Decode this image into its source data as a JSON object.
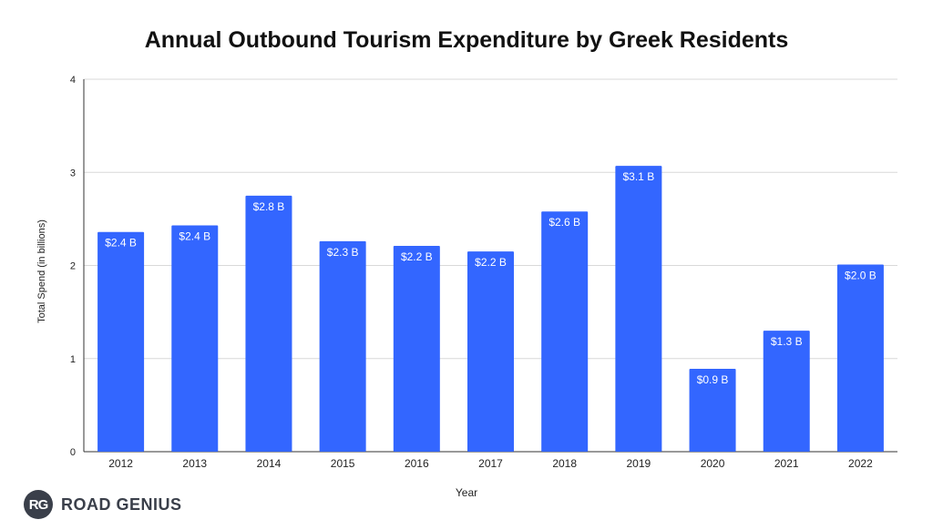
{
  "chart_data": {
    "type": "bar",
    "title": "Annual Outbound Tourism Expenditure by Greek Residents",
    "xlabel": "Year",
    "ylabel": "Total Spend (in billions)",
    "categories": [
      "2012",
      "2013",
      "2014",
      "2015",
      "2016",
      "2017",
      "2018",
      "2019",
      "2020",
      "2021",
      "2022"
    ],
    "values": [
      2.36,
      2.43,
      2.75,
      2.26,
      2.21,
      2.15,
      2.58,
      3.07,
      0.89,
      1.3,
      2.01
    ],
    "data_labels": [
      "$2.4 B",
      "$2.4 B",
      "$2.8 B",
      "$2.3 B",
      "$2.2 B",
      "$2.2 B",
      "$2.6 B",
      "$3.1 B",
      "$0.9 B",
      "$1.3 B",
      "$2.0 B"
    ],
    "ylim": [
      0,
      4
    ],
    "yticks": [
      "0",
      "1",
      "2",
      "3",
      "4"
    ],
    "grid": true,
    "bar_color": "#3366ff",
    "grid_color": "#d9d9d9"
  },
  "logo": {
    "badge": "RG",
    "text": "ROAD GENIUS"
  }
}
